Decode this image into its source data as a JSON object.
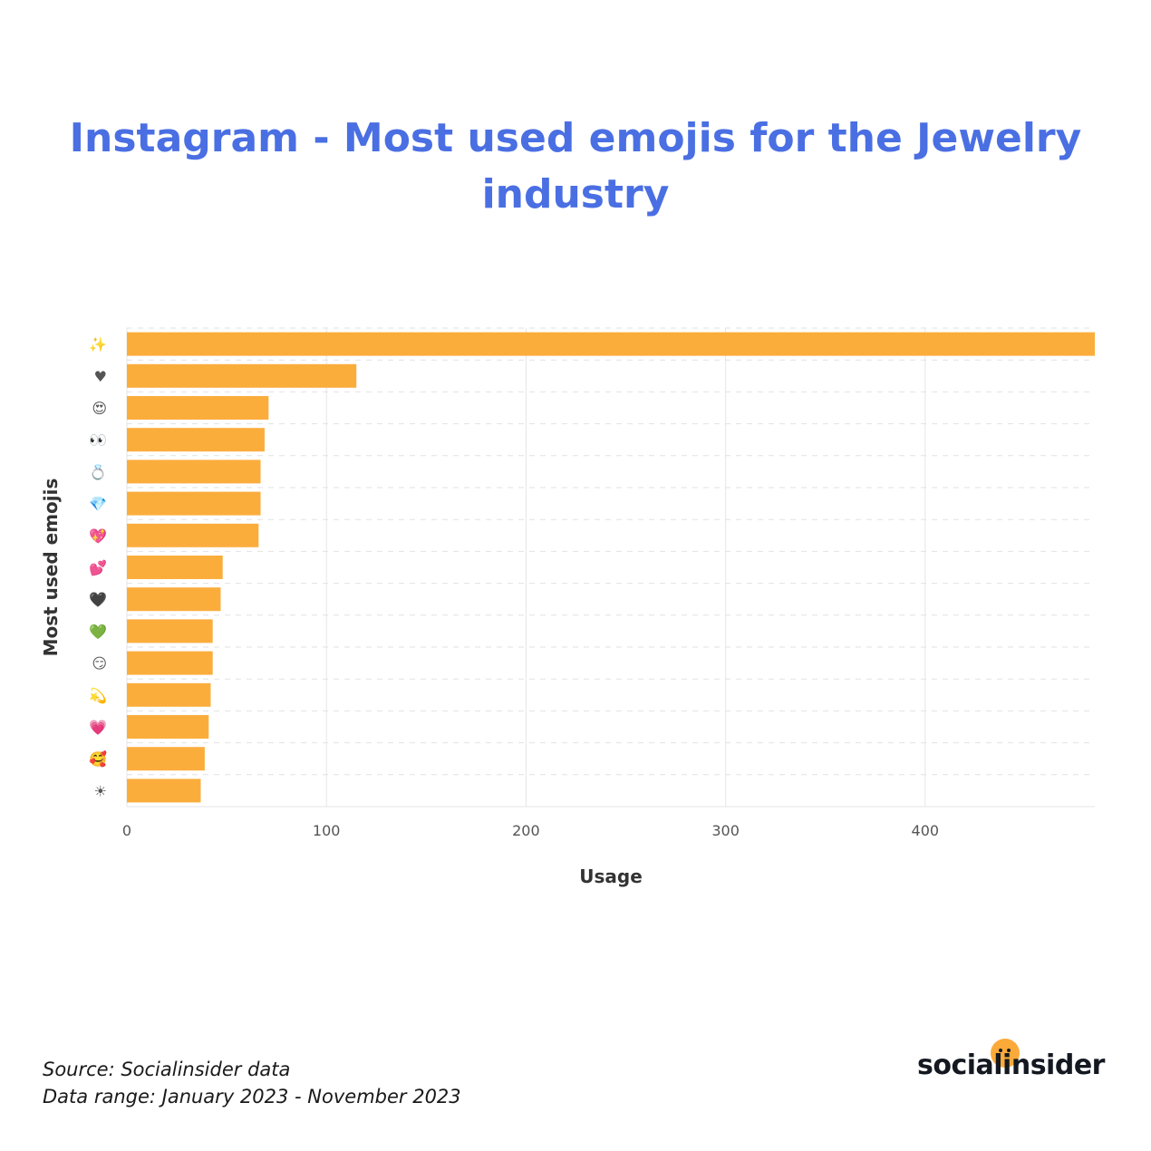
{
  "chart_data": {
    "type": "bar",
    "orientation": "horizontal",
    "title": "Instagram - Most used emojis for the Jewelry industry",
    "xlabel": "Usage",
    "ylabel": "Most used emojis",
    "xlim": [
      0,
      485
    ],
    "xticks": [
      0,
      100,
      200,
      300,
      400
    ],
    "grid": true,
    "categories": [
      "✨",
      "♥",
      "😍",
      "👀",
      "💍",
      "💎",
      "💖",
      "💕",
      "🖤",
      "💚",
      "😏",
      "💫",
      "💗",
      "🥰",
      "☀"
    ],
    "values": [
      485,
      115,
      71,
      69,
      67,
      67,
      66,
      48,
      47,
      43,
      43,
      42,
      41,
      39,
      37
    ],
    "bar_color": "#fbad3c"
  },
  "footer": {
    "source": "Source: Socialinsider data",
    "range": "Data range: January 2023 - November 2023"
  },
  "logo": {
    "text": "socialinsider",
    "icon": "smiley-dot-icon",
    "color": "#fbaa3a"
  }
}
